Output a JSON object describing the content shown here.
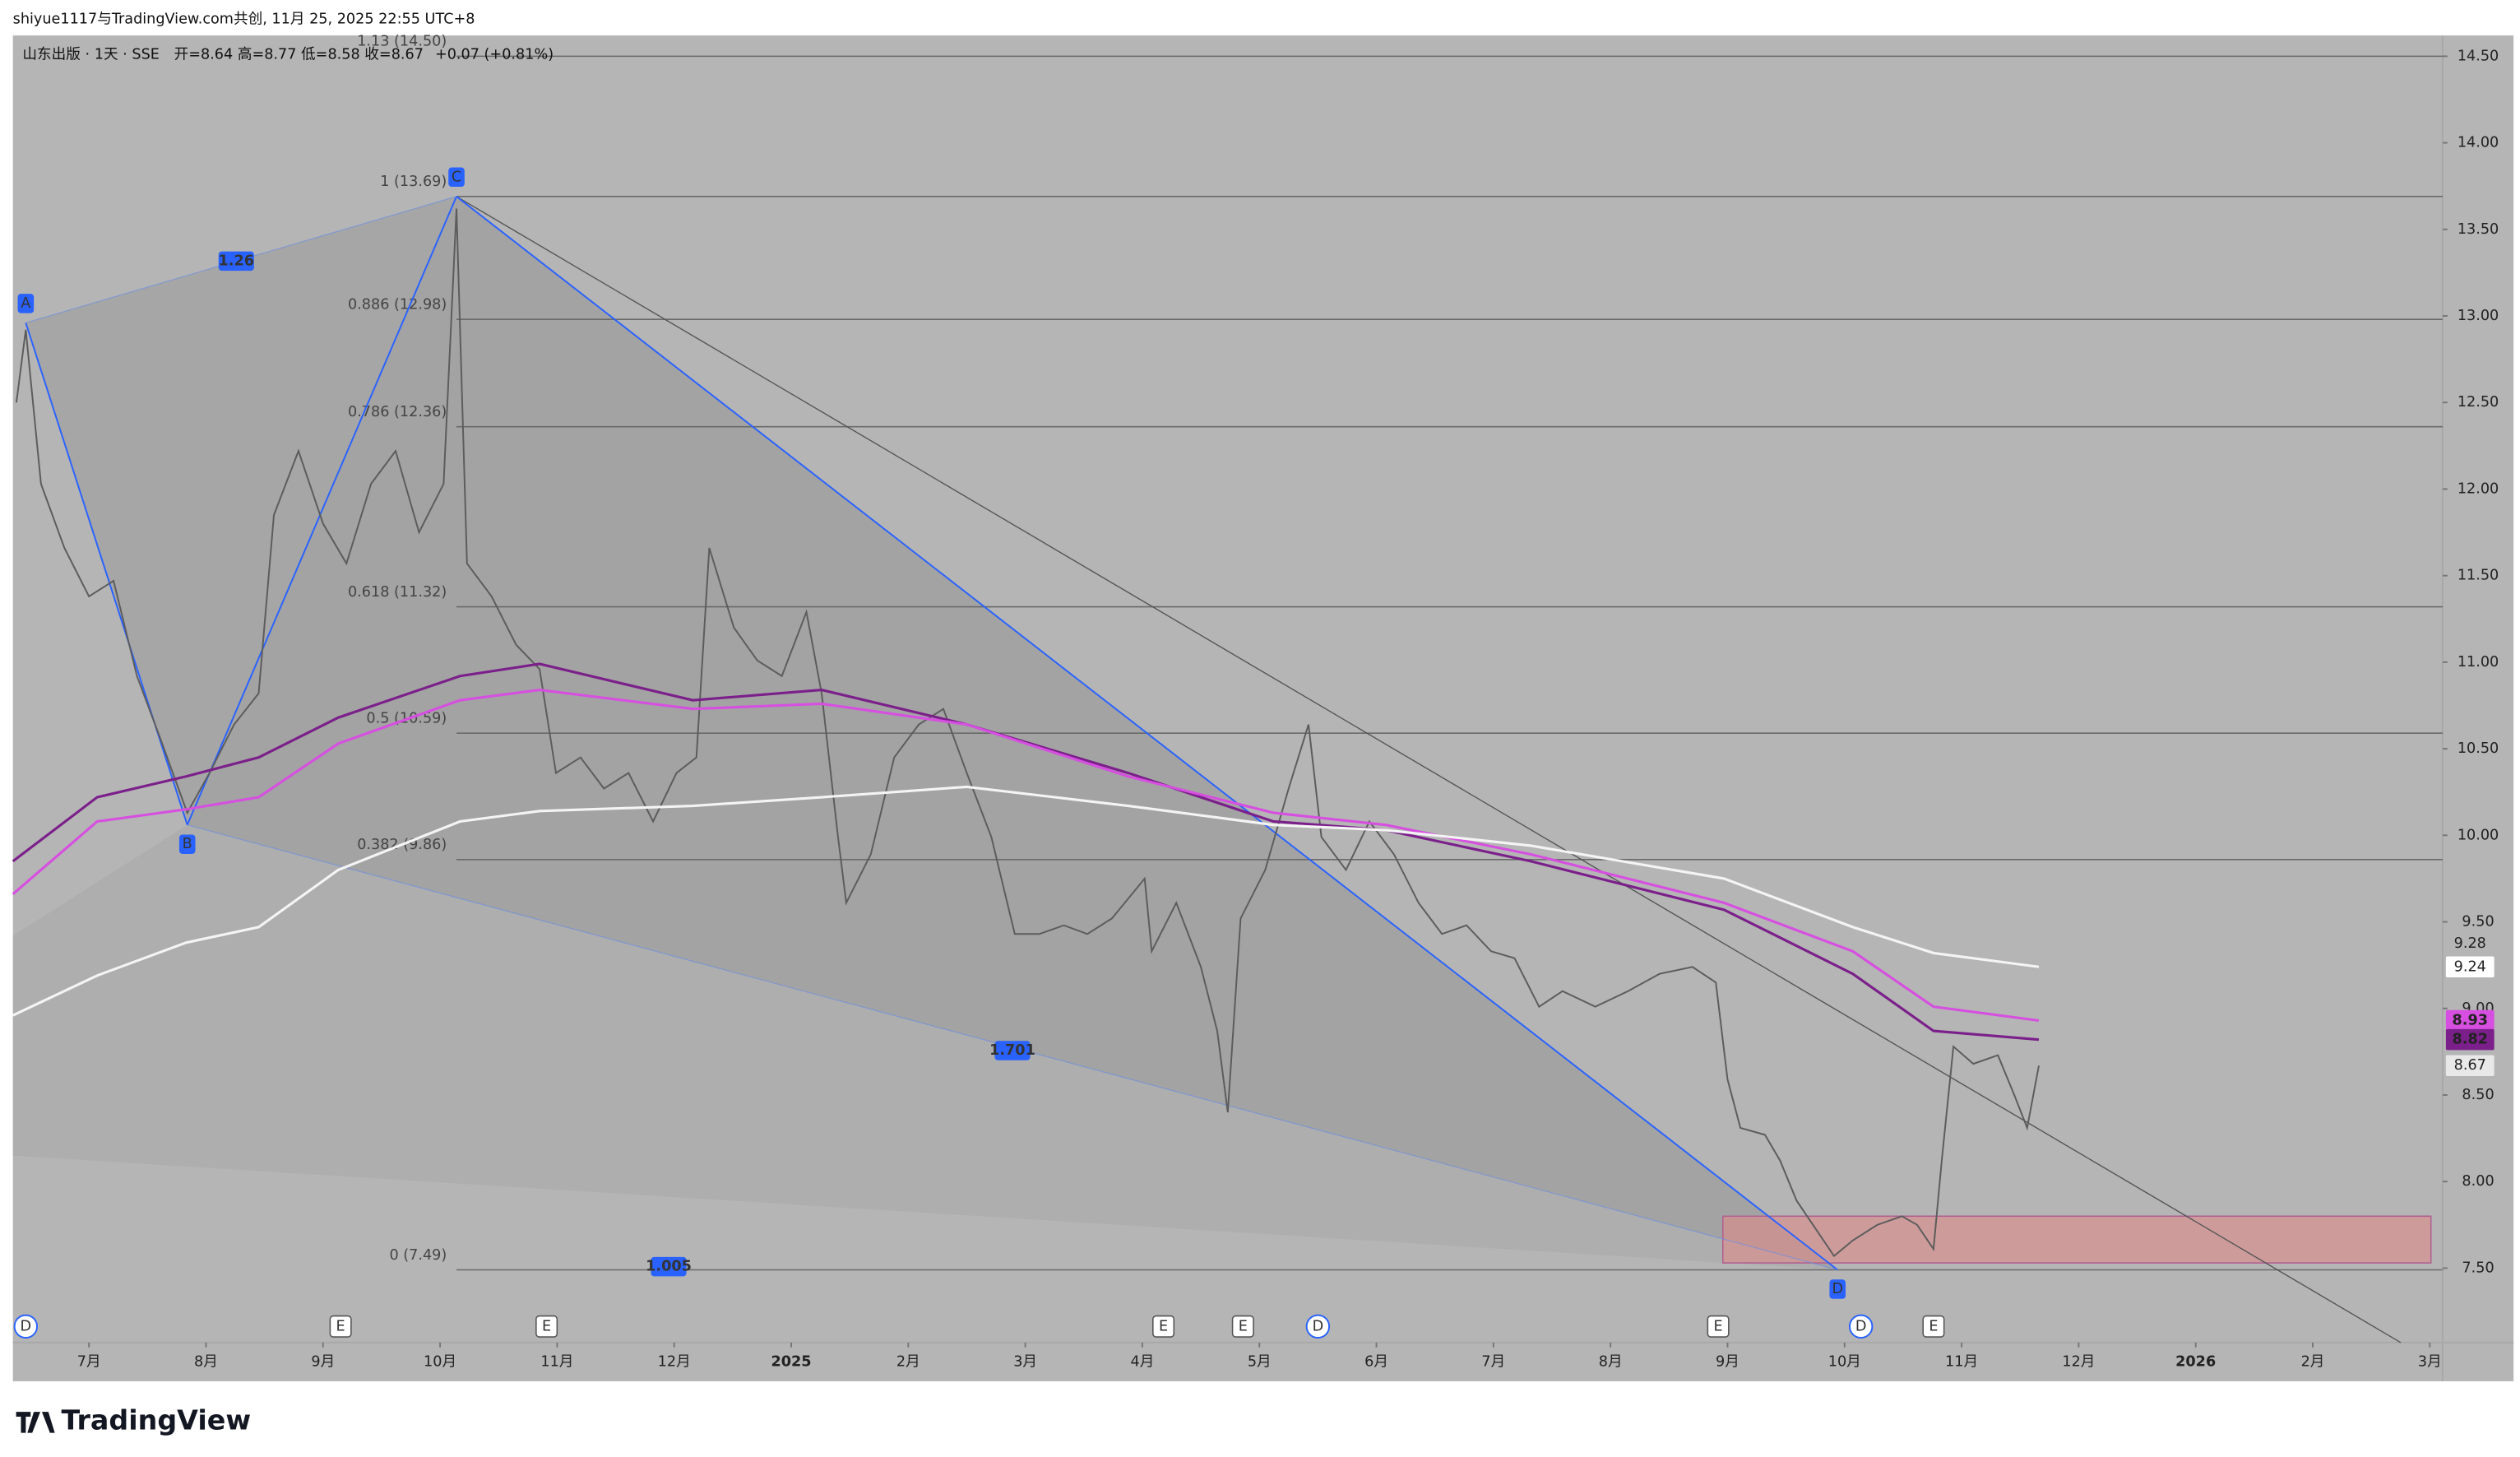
{
  "header": {
    "credit": "shiyue1117与TradingView.com共创, 11月 25, 2025 22:55 UTC+8",
    "symbol": "山东出版 · 1天 · SSE",
    "ohlc": "开=8.64 高=8.77 低=8.58 收=8.67",
    "change": "+0.07 (+0.81%)",
    "logo": "TradingView"
  },
  "chart_data": {
    "type": "line",
    "xlim": [
      -0.65,
      20.11
    ],
    "ylim": [
      7.07,
      14.62
    ],
    "xticks": [
      {
        "value": 0,
        "label": "7月"
      },
      {
        "value": 1,
        "label": "8月"
      },
      {
        "value": 2,
        "label": "9月"
      },
      {
        "value": 3,
        "label": "10月"
      },
      {
        "value": 4,
        "label": "11月"
      },
      {
        "value": 5,
        "label": "12月"
      },
      {
        "value": 6,
        "label": "2025"
      },
      {
        "value": 7,
        "label": "2月"
      },
      {
        "value": 8,
        "label": "3月"
      },
      {
        "value": 9,
        "label": "4月"
      },
      {
        "value": 10,
        "label": "5月"
      },
      {
        "value": 11,
        "label": "6月"
      },
      {
        "value": 12,
        "label": "7月"
      },
      {
        "value": 13,
        "label": "8月"
      },
      {
        "value": 14,
        "label": "9月"
      },
      {
        "value": 15,
        "label": "10月"
      },
      {
        "value": 16,
        "label": "11月"
      },
      {
        "value": 17,
        "label": "12月"
      },
      {
        "value": 18,
        "label": "2026"
      },
      {
        "value": 19,
        "label": "2月"
      },
      {
        "value": 20,
        "label": "3月"
      }
    ],
    "yticks": [
      {
        "value": 7.5,
        "label": "7.50"
      },
      {
        "value": 8,
        "label": "8.00"
      },
      {
        "value": 8.5,
        "label": "8.50"
      },
      {
        "value": 9,
        "label": "9.00"
      },
      {
        "value": 9.5,
        "label": "9.50"
      },
      {
        "value": 10,
        "label": "10.00"
      },
      {
        "value": 10.5,
        "label": "10.50"
      },
      {
        "value": 11,
        "label": "11.00"
      },
      {
        "value": 11.5,
        "label": "11.50"
      },
      {
        "value": 12,
        "label": "12.00"
      },
      {
        "value": 12.5,
        "label": "12.50"
      },
      {
        "value": 13,
        "label": "13.00"
      },
      {
        "value": 13.5,
        "label": "13.50"
      },
      {
        "value": 14,
        "label": "14.00"
      },
      {
        "value": 14.5,
        "label": "14.50"
      }
    ],
    "grid": false,
    "series": [
      {
        "color": "#5c5c5c",
        "x": [
          -0.62,
          -0.54,
          -0.41,
          -0.21,
          0,
          0.21,
          0.41,
          0.62,
          0.84,
          1.03,
          1.24,
          1.45,
          1.58,
          1.79,
          2.0,
          2.2,
          2.41,
          2.62,
          2.82,
          3.03,
          3.14,
          3.23,
          3.44,
          3.65,
          3.85,
          3.99,
          4.2,
          4.4,
          4.61,
          4.82,
          5.02,
          5.19,
          5.3,
          5.51,
          5.71,
          5.92,
          6.13,
          6.26,
          6.4,
          6.47,
          6.68,
          6.88,
          7.09,
          7.3,
          7.5,
          7.71,
          7.91,
          8.12,
          8.33,
          8.53,
          8.74,
          9.02,
          9.08,
          9.29,
          9.5,
          9.64,
          9.73,
          9.84,
          10.05,
          10.25,
          10.42,
          10.53,
          10.74,
          10.94,
          11.15,
          11.36,
          11.56,
          11.77,
          11.98,
          12.18,
          12.39,
          12.59,
          12.87,
          13.15,
          13.42,
          13.7,
          13.9,
          14.0,
          14.11,
          14.32,
          14.45,
          14.59,
          14.73,
          14.91,
          15.07,
          15.28,
          15.49,
          15.62,
          15.76,
          15.83,
          15.93,
          16.1,
          16.31,
          16.45,
          16.56,
          16.66
        ],
        "values": [
          12.5,
          12.92,
          12.03,
          11.66,
          11.38,
          11.47,
          10.92,
          10.54,
          10.13,
          10.36,
          10.64,
          10.82,
          11.85,
          12.22,
          11.8,
          11.57,
          12.03,
          12.22,
          11.75,
          12.03,
          13.62,
          11.57,
          11.38,
          11.1,
          10.96,
          10.36,
          10.45,
          10.27,
          10.36,
          10.08,
          10.36,
          10.45,
          11.66,
          11.2,
          11.01,
          10.92,
          11.29,
          10.82,
          9.99,
          9.61,
          9.89,
          10.45,
          10.64,
          10.73,
          10.36,
          9.99,
          9.43,
          9.43,
          9.48,
          9.43,
          9.52,
          9.75,
          9.33,
          9.61,
          9.24,
          8.87,
          8.4,
          9.52,
          9.8,
          10.27,
          10.64,
          9.99,
          9.8,
          10.08,
          9.89,
          9.61,
          9.43,
          9.48,
          9.33,
          9.29,
          9.01,
          9.1,
          9.01,
          9.1,
          9.2,
          9.24,
          9.15,
          8.59,
          8.31,
          8.27,
          8.12,
          7.89,
          7.75,
          7.57,
          7.66,
          7.75,
          7.8,
          7.75,
          7.61,
          8.12,
          8.78,
          8.68,
          8.73,
          8.5,
          8.31,
          8.67
        ]
      },
      {
        "color": "#7b1f8a",
        "x": [
          -0.65,
          0.07,
          0.83,
          1.45,
          2.13,
          3.17,
          3.85,
          5.16,
          6.26,
          7.5,
          8.88,
          10.12,
          11.08,
          12.32,
          13.97,
          15.07,
          15.76,
          16.66
        ],
        "values": [
          9.85,
          10.22,
          10.34,
          10.45,
          10.68,
          10.92,
          10.99,
          10.78,
          10.84,
          10.64,
          10.36,
          10.08,
          10.03,
          9.85,
          9.57,
          9.2,
          8.87,
          8.82
        ]
      },
      {
        "color": "#d64fe0",
        "x": [
          -0.65,
          0.07,
          0.83,
          1.45,
          2.13,
          3.17,
          3.85,
          5.16,
          6.26,
          7.5,
          8.88,
          10.12,
          11.08,
          12.32,
          13.97,
          15.07,
          15.76,
          16.66
        ],
        "values": [
          9.66,
          10.08,
          10.15,
          10.22,
          10.53,
          10.78,
          10.84,
          10.73,
          10.76,
          10.64,
          10.34,
          10.13,
          10.06,
          9.89,
          9.61,
          9.33,
          9.01,
          8.93
        ]
      },
      {
        "color": "#f4f4f4",
        "x": [
          -0.65,
          0.07,
          0.83,
          1.45,
          2.13,
          3.17,
          3.85,
          5.16,
          6.26,
          7.5,
          8.88,
          10.12,
          11.08,
          12.32,
          13.97,
          15.07,
          15.76,
          16.66
        ],
        "values": [
          8.96,
          9.19,
          9.38,
          9.47,
          9.8,
          10.08,
          10.14,
          10.17,
          10.22,
          10.28,
          10.17,
          10.06,
          10.03,
          9.94,
          9.75,
          9.47,
          9.32,
          9.24
        ]
      }
    ],
    "price_labels": {
      "values": [
        9.28,
        9.24,
        8.93,
        8.82,
        8.67
      ],
      "colors": [
        "none",
        "#ffffff",
        "#d64fe0",
        "#7b1f8a",
        "#e8e8e8"
      ]
    },
    "fib_levels": [
      {
        "label": "1.13 (14.50)",
        "value": 14.5
      },
      {
        "label": "1 (13.69)",
        "value": 13.69
      },
      {
        "label": "0.886 (12.98)",
        "value": 12.98
      },
      {
        "label": "0.786 (12.36)",
        "value": 12.36
      },
      {
        "label": "0.618 (11.32)",
        "value": 11.32
      },
      {
        "label": "0.5 (10.59)",
        "value": 10.59
      },
      {
        "label": "0.382 (9.86)",
        "value": 9.86
      },
      {
        "label": "0 (7.49)",
        "value": 7.49
      }
    ],
    "pattern": {
      "labels": [
        "A",
        "B",
        "C",
        "D"
      ],
      "x": [
        -0.54,
        0.84,
        3.14,
        14.94
      ],
      "values": [
        12.96,
        10.06,
        13.69,
        7.49
      ],
      "ratios": [
        "1.26",
        "1.701",
        "1.005"
      ],
      "color": "#2962ff"
    },
    "zone": {
      "x": [
        13.96,
        20.01
      ],
      "values": [
        7.53,
        7.8
      ],
      "color": "#e08a8a"
    },
    "events": {
      "labels": [
        "D",
        "E",
        "E",
        "E",
        "E",
        "D",
        "E",
        "D",
        "E"
      ],
      "x": [
        -0.54,
        2.15,
        3.91,
        9.18,
        9.86,
        10.5,
        13.92,
        15.14,
        15.76
      ]
    }
  }
}
